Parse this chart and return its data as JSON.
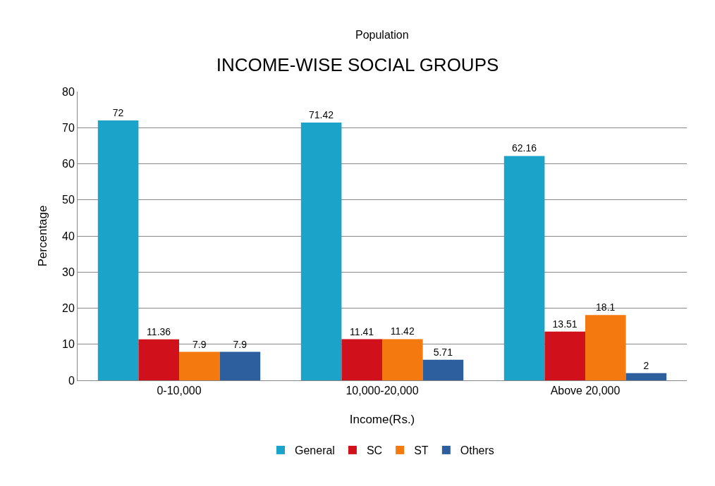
{
  "chart_data": {
    "type": "bar",
    "title": "INCOME-WISE SOCIAL GROUPS",
    "subtitle": "Population",
    "xlabel": "Income(Rs.)",
    "ylabel": "Percentage",
    "categories": [
      "0-10,000",
      "10,000-20,000",
      "Above 20,000"
    ],
    "series": [
      {
        "name": "General",
        "color": "#1ba3c9",
        "values": [
          72,
          71.42,
          62.16
        ]
      },
      {
        "name": "SC",
        "color": "#d0111b",
        "values": [
          11.36,
          11.41,
          13.51
        ]
      },
      {
        "name": "ST",
        "color": "#f47a10",
        "values": [
          7.9,
          11.42,
          18.1
        ]
      },
      {
        "name": "Others",
        "color": "#2d5e9e",
        "values": [
          7.9,
          5.71,
          2
        ]
      }
    ],
    "ylim": [
      0,
      80
    ],
    "yticks": [
      0,
      10,
      20,
      30,
      40,
      50,
      60,
      70,
      80
    ],
    "grid": "y",
    "legend": "bottom",
    "data_labels": true
  }
}
